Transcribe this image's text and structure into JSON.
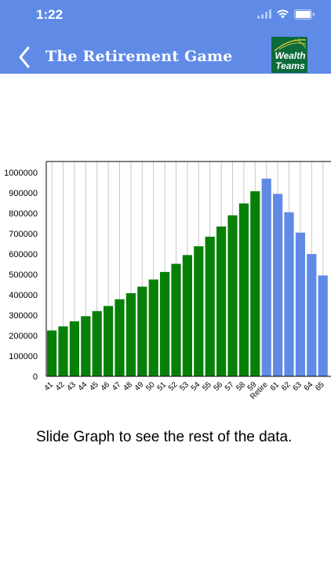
{
  "status_bar": {
    "time": "1:22"
  },
  "header": {
    "title": "The Retirement Game",
    "logo_line1": "Wealth",
    "logo_line2": "Teams"
  },
  "caption": "Slide Graph to see the rest of the data.",
  "colors": {
    "header": "#5f8ae6",
    "accumulation": "#078007",
    "retirement": "#5f8ae6"
  },
  "chart_data": {
    "type": "bar",
    "categories": [
      "41",
      "42",
      "43",
      "44",
      "45",
      "46",
      "47",
      "48",
      "49",
      "50",
      "51",
      "52",
      "53",
      "54",
      "55",
      "56",
      "57",
      "58",
      "59",
      "Retire",
      "61",
      "62",
      "63",
      "64",
      "65"
    ],
    "values": [
      225000,
      245000,
      270000,
      295000,
      320000,
      345000,
      378000,
      408000,
      440000,
      475000,
      512000,
      552000,
      595000,
      638000,
      685000,
      735000,
      790000,
      848000,
      908000,
      970000,
      895000,
      805000,
      705000,
      600000,
      495000
    ],
    "series_colors": [
      "accumulation",
      "accumulation",
      "accumulation",
      "accumulation",
      "accumulation",
      "accumulation",
      "accumulation",
      "accumulation",
      "accumulation",
      "accumulation",
      "accumulation",
      "accumulation",
      "accumulation",
      "accumulation",
      "accumulation",
      "accumulation",
      "accumulation",
      "accumulation",
      "accumulation",
      "retirement",
      "retirement",
      "retirement",
      "retirement",
      "retirement",
      "retirement"
    ],
    "y_ticks": [
      0,
      100000,
      200000,
      300000,
      400000,
      500000,
      600000,
      700000,
      800000,
      900000,
      1000000
    ],
    "ylim": [
      0,
      1000000
    ],
    "grid": true
  }
}
